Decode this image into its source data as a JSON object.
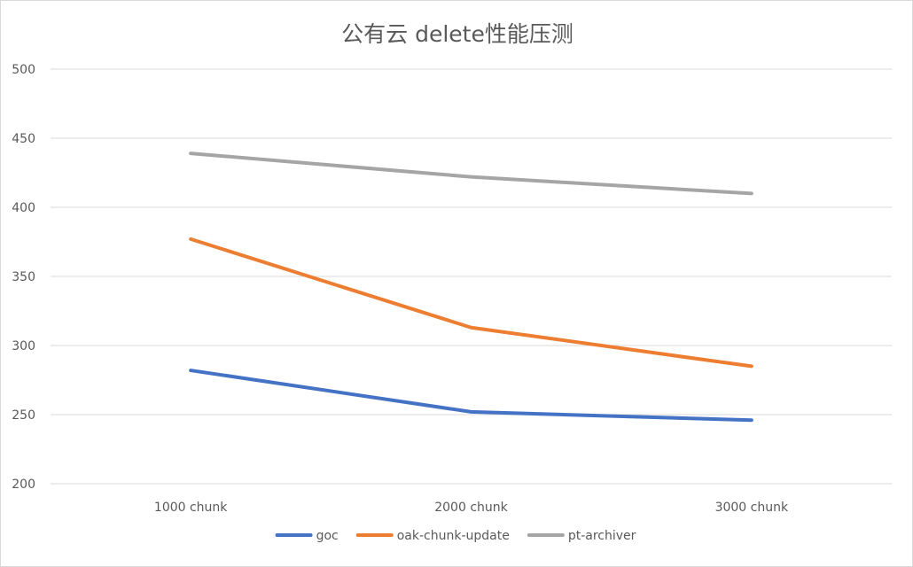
{
  "chart_data": {
    "type": "line",
    "title": "公有云 delete性能压测",
    "xlabel": "",
    "ylabel": "",
    "categories": [
      "1000 chunk",
      "2000 chunk",
      "3000 chunk"
    ],
    "ylim": [
      200,
      500
    ],
    "yticks": [
      200,
      250,
      300,
      350,
      400,
      450,
      500
    ],
    "grid": true,
    "legend_position": "bottom",
    "series": [
      {
        "name": "goc",
        "color": "#4472C4",
        "values": [
          282,
          252,
          246
        ]
      },
      {
        "name": "oak-chunk-update",
        "color": "#ED7D31",
        "values": [
          377,
          313,
          285
        ]
      },
      {
        "name": "pt-archiver",
        "color": "#A5A5A5",
        "values": [
          439,
          422,
          410
        ]
      }
    ]
  }
}
